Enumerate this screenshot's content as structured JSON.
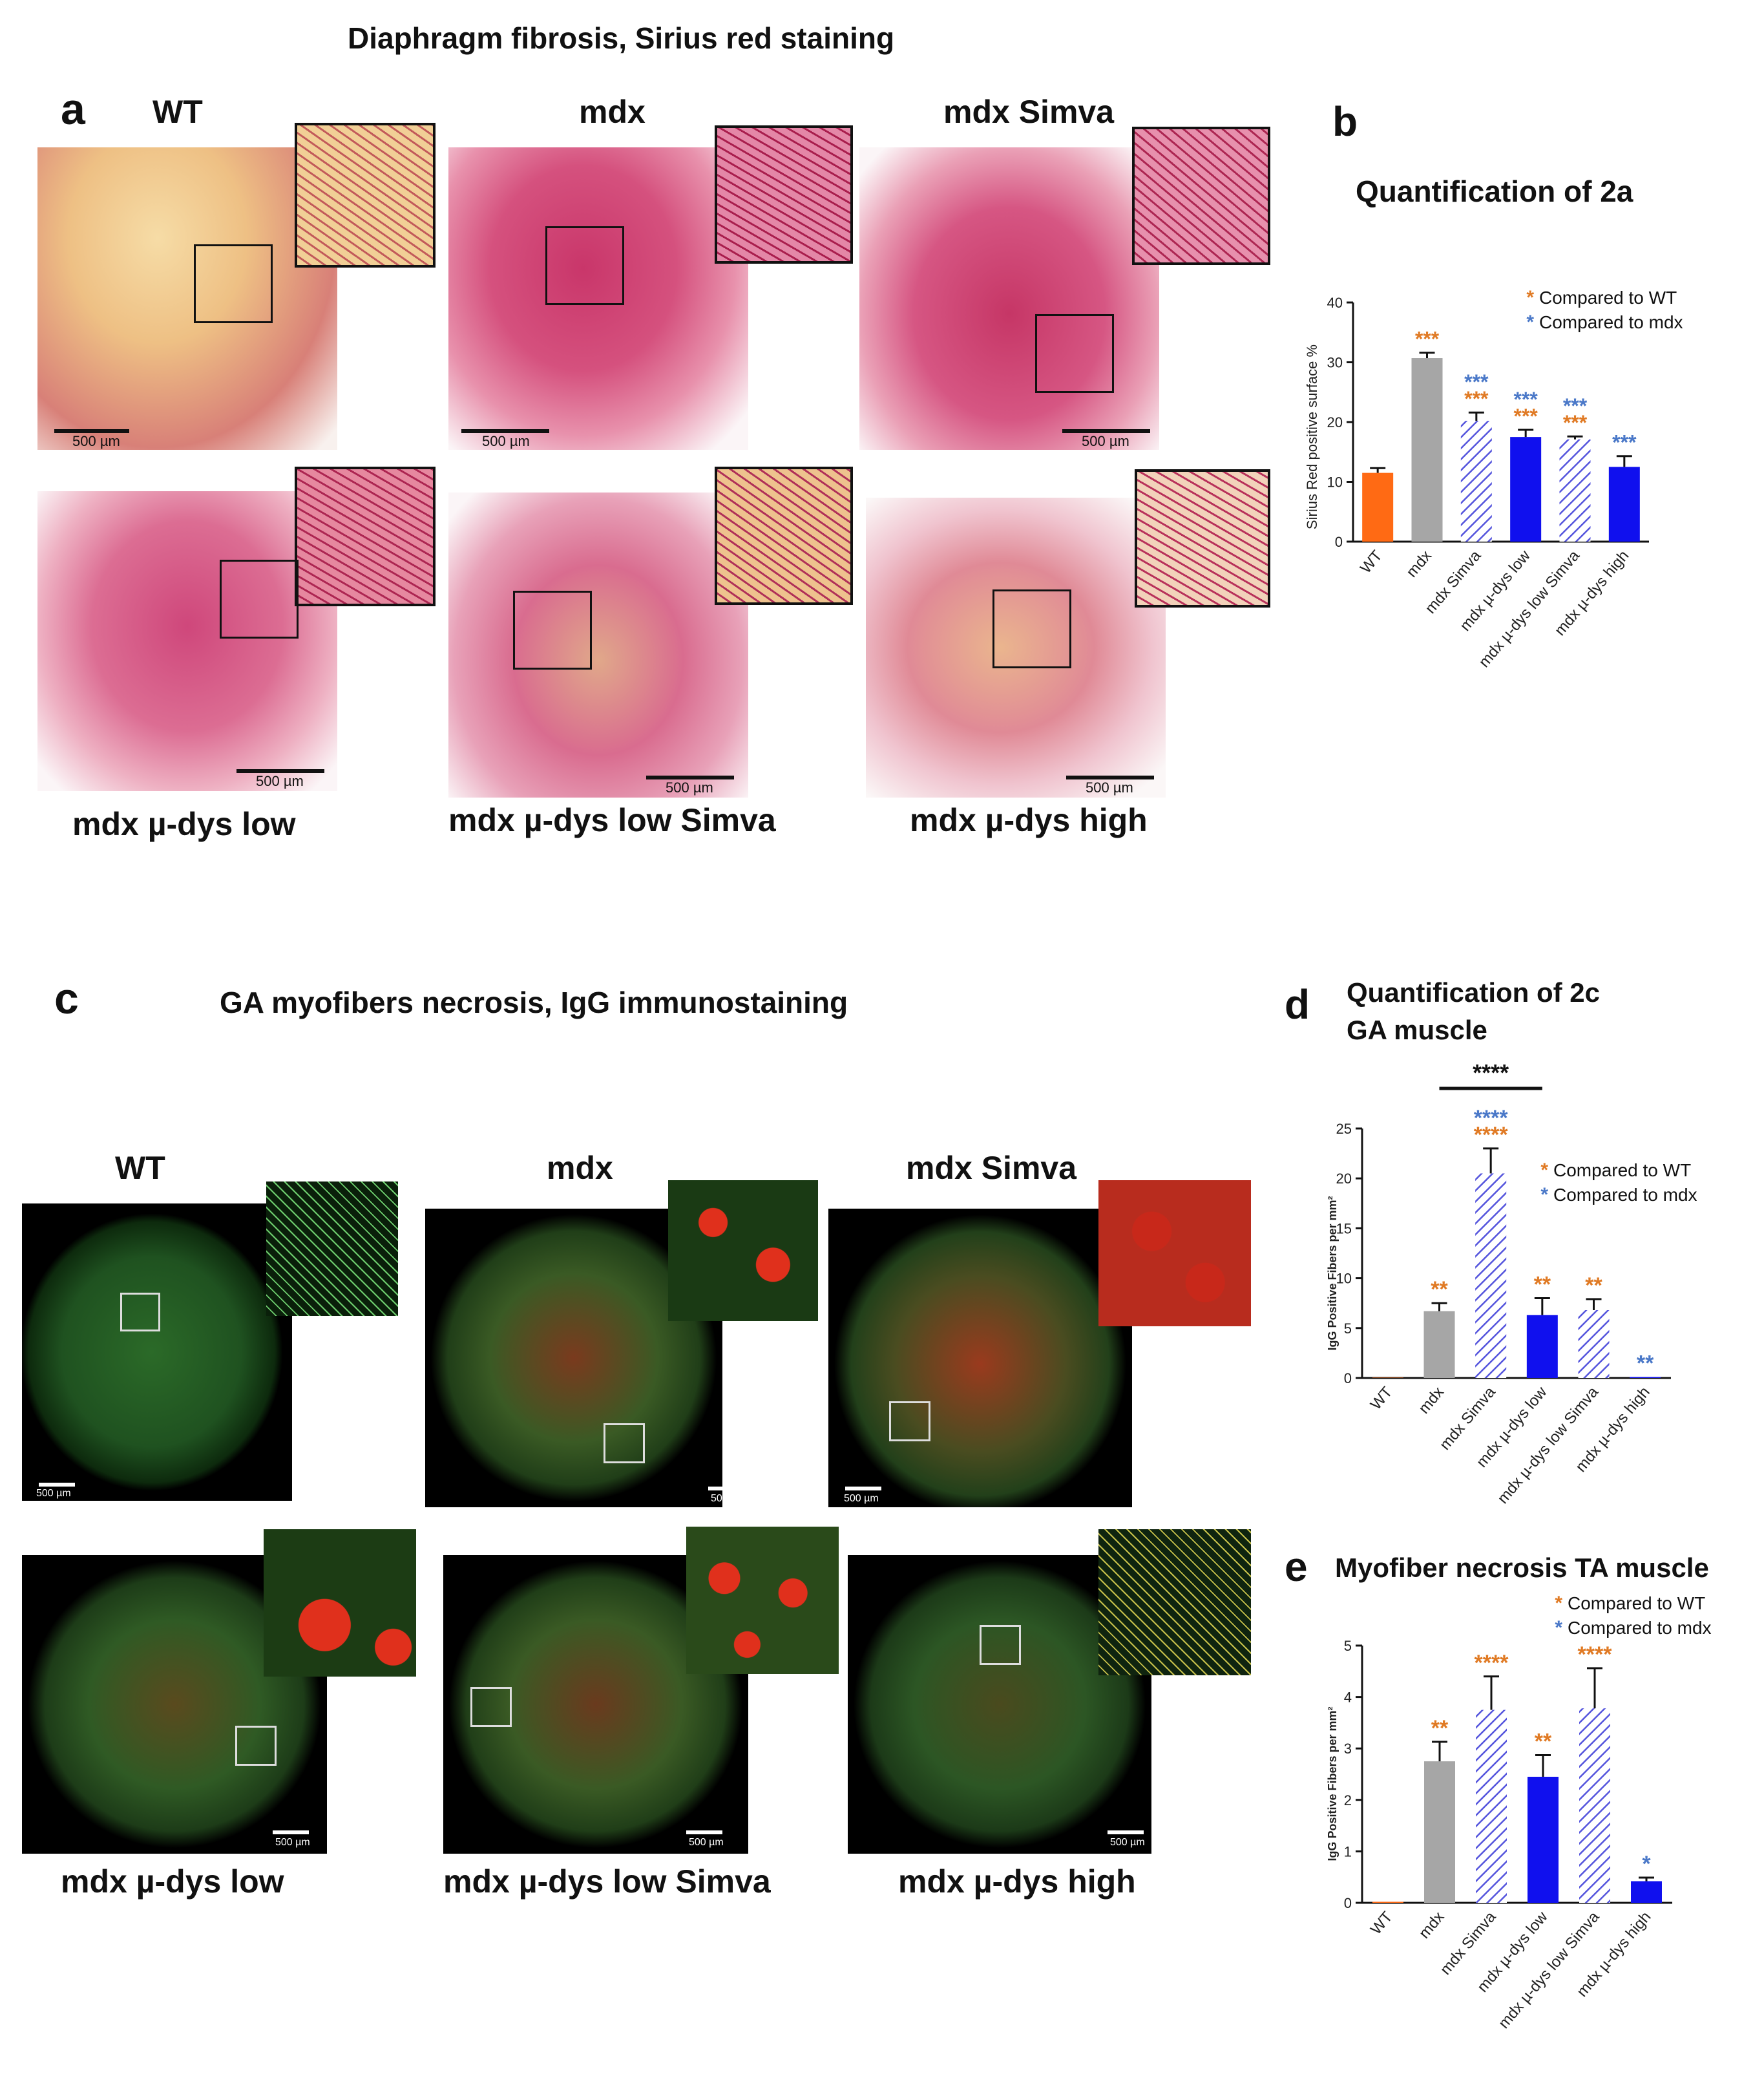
{
  "panel_a": {
    "title": "Diaphragm fibrosis, Sirius red staining",
    "letter": "a",
    "labels": [
      "WT",
      "mdx",
      "mdx Simva",
      "mdx µ-dys low",
      "mdx µ-dys low Simva",
      "mdx µ-dys high"
    ],
    "scalebar": "500 µm"
  },
  "panel_c": {
    "title": "GA myofibers necrosis, IgG immunostaining",
    "letter": "c",
    "labels": [
      "WT",
      "mdx",
      "mdx Simva",
      "mdx µ-dys low",
      "mdx µ-dys low Simva",
      "mdx µ-dys high"
    ],
    "scalebar": "500 µm"
  },
  "colors": {
    "orange": "#ff6a14",
    "grey": "#a6a6a6",
    "blue": "#1010ee",
    "hatch": "#5555dd",
    "star_orange": "#e07a24",
    "star_blue": "#4a78c8"
  },
  "chart_data": [
    {
      "id": "b",
      "type": "bar",
      "letter": "b",
      "title": "Quantification of 2a",
      "ylabel": "Sirius Red positive surface %",
      "categories": [
        "WT",
        "mdx",
        "mdx Simva",
        "mdx µ-dys low",
        "mdx µ-dys low Simva",
        "mdx µ-dys high"
      ],
      "values": [
        11.5,
        30.7,
        20.2,
        17.5,
        17.1,
        12.5
      ],
      "errors": [
        0.8,
        0.9,
        1.4,
        1.2,
        0.5,
        1.8
      ],
      "fills": [
        "orange",
        "grey",
        "hatch",
        "blue",
        "hatch",
        "blue"
      ],
      "ylim": [
        0,
        40
      ],
      "yticks": [
        0,
        10,
        20,
        30,
        40
      ],
      "stars_orange": [
        "",
        "***",
        "***",
        "***",
        "***",
        ""
      ],
      "stars_blue": [
        "",
        "",
        "***",
        "***",
        "***",
        "***"
      ],
      "legend": [
        "Compared to WT",
        "Compared to mdx"
      ]
    },
    {
      "id": "d",
      "type": "bar",
      "letter": "d",
      "title": "Quantification of 2c",
      "subtitle": "GA muscle",
      "ylabel": "IgG Positive Fibers per mm²",
      "categories": [
        "WT",
        "mdx",
        "mdx Simva",
        "mdx µ-dys low",
        "mdx µ-dys low Simva",
        "mdx µ-dys high"
      ],
      "values": [
        0,
        6.7,
        20.5,
        6.3,
        6.8,
        0.1
      ],
      "errors": [
        0,
        0.8,
        2.5,
        1.7,
        1.1,
        0
      ],
      "fills": [
        "orange",
        "grey",
        "hatch",
        "blue",
        "hatch",
        "blue"
      ],
      "ylim": [
        0,
        25
      ],
      "yticks": [
        0,
        5,
        10,
        15,
        20,
        25
      ],
      "stars_orange": [
        "",
        "**",
        "****",
        "**",
        "**",
        ""
      ],
      "stars_blue": [
        "",
        "",
        "****",
        "",
        "",
        "**"
      ],
      "bracket_label": "****",
      "legend": [
        "Compared to WT",
        "Compared to mdx"
      ]
    },
    {
      "id": "e",
      "type": "bar",
      "letter": "e",
      "title": "Myofiber necrosis TA muscle",
      "ylabel": "IgG Positive Fibers per mm²",
      "categories": [
        "WT",
        "mdx",
        "mdx Simva",
        "mdx µ-dys low",
        "mdx µ-dys low Simva",
        "mdx µ-dys high"
      ],
      "values": [
        0.02,
        2.75,
        3.75,
        2.45,
        3.78,
        0.42
      ],
      "errors": [
        0,
        0.38,
        0.65,
        0.42,
        0.78,
        0.07
      ],
      "fills": [
        "orange",
        "grey",
        "hatch",
        "blue",
        "hatch",
        "blue"
      ],
      "ylim": [
        0,
        5
      ],
      "yticks": [
        0,
        1,
        2,
        3,
        4,
        5
      ],
      "stars_orange": [
        "",
        "**",
        "****",
        "**",
        "****",
        ""
      ],
      "stars_blue": [
        "",
        "",
        "",
        "",
        "",
        "*"
      ],
      "legend": [
        "Compared to WT",
        "Compared to mdx"
      ]
    }
  ]
}
